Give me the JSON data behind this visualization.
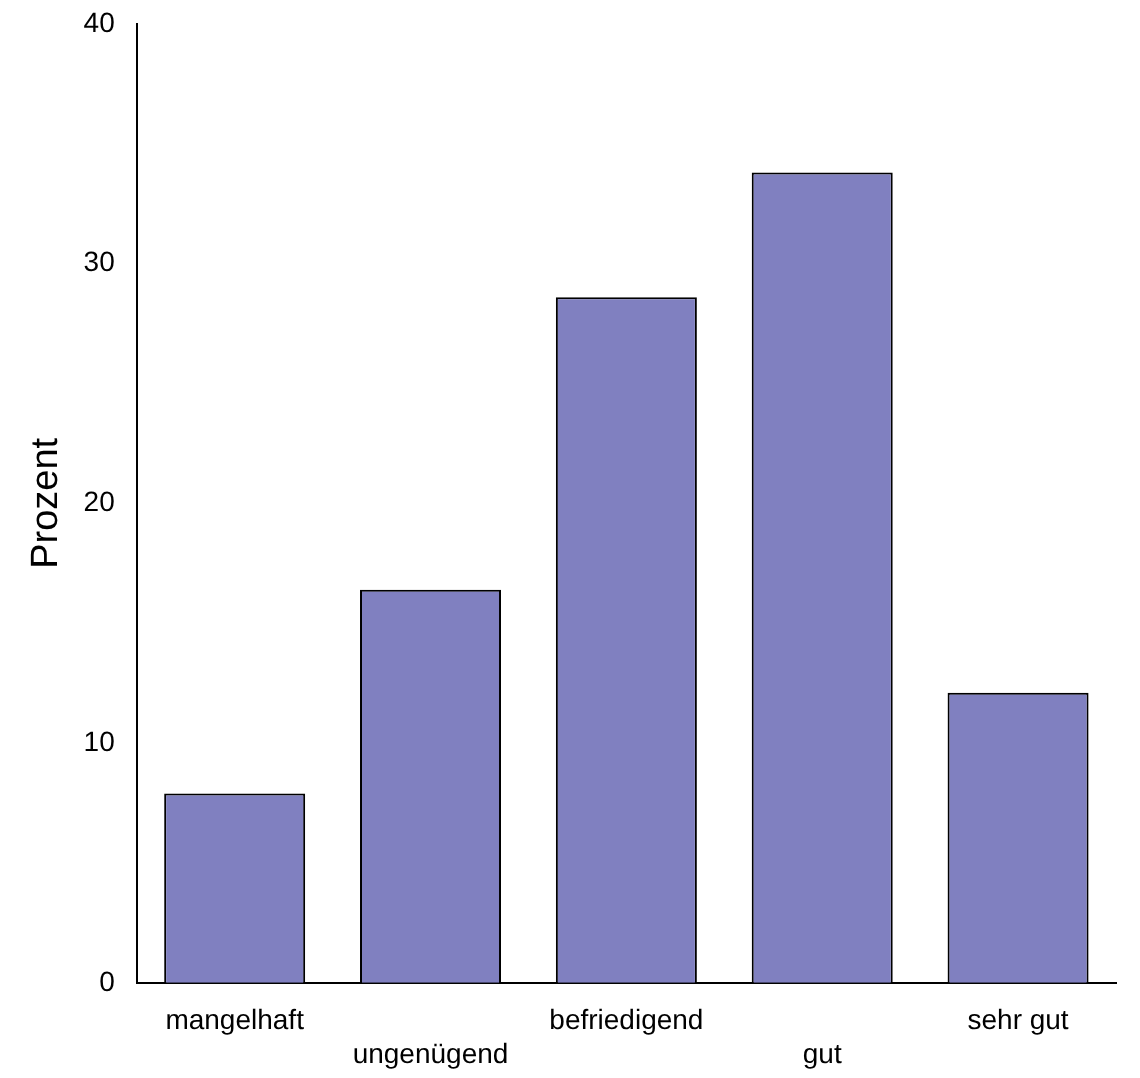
{
  "chart_data": {
    "type": "bar",
    "ylabel": "Prozent",
    "categories": [
      "mangelhaft",
      "ungenügend",
      "befriedigend",
      "gut",
      "sehr gut"
    ],
    "values": [
      7.9,
      16.4,
      28.6,
      33.8,
      12.1
    ],
    "color": "#8080c0",
    "ylim": [
      0,
      40
    ],
    "yticks": [
      0,
      10,
      20,
      30,
      40
    ],
    "grid": false,
    "legend": false
  }
}
